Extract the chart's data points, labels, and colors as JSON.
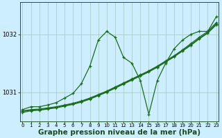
{
  "bg_color": "#cceeff",
  "grid_color": "#aacccc",
  "line_color": "#1a6b1a",
  "xlabel": "Graphe pression niveau de la mer (hPa)",
  "xlabel_fontsize": 7.5,
  "xlabel_bold": true,
  "xticks": [
    0,
    1,
    2,
    3,
    4,
    5,
    6,
    7,
    8,
    9,
    10,
    11,
    12,
    13,
    14,
    15,
    16,
    17,
    18,
    19,
    20,
    21,
    22,
    23
  ],
  "yticks": [
    1031,
    1032
  ],
  "ylim": [
    1030.5,
    1032.55
  ],
  "xlim": [
    -0.3,
    23.3
  ],
  "series_zigzag": [
    1030.7,
    1030.75,
    1030.75,
    1030.78,
    1030.82,
    1030.9,
    1030.98,
    1031.15,
    1031.45,
    1031.9,
    1032.05,
    1031.95,
    1031.6,
    1031.5,
    1031.2,
    1030.62,
    1031.2,
    1031.5,
    1031.75,
    1031.9,
    1032.0,
    1032.05,
    1032.05,
    1032.3
  ],
  "series_linear": [
    [
      1030.68,
      1030.7,
      1030.71,
      1030.73,
      1030.75,
      1030.78,
      1030.81,
      1030.85,
      1030.9,
      1030.96,
      1031.02,
      1031.09,
      1031.16,
      1031.23,
      1031.3,
      1031.37,
      1031.45,
      1031.54,
      1031.63,
      1031.73,
      1031.84,
      1031.95,
      1032.05,
      1032.2
    ],
    [
      1030.67,
      1030.69,
      1030.7,
      1030.72,
      1030.74,
      1030.77,
      1030.8,
      1030.84,
      1030.89,
      1030.95,
      1031.01,
      1031.08,
      1031.15,
      1031.22,
      1031.29,
      1031.36,
      1031.44,
      1031.53,
      1031.62,
      1031.72,
      1031.82,
      1031.93,
      1032.03,
      1032.18
    ],
    [
      1030.65,
      1030.68,
      1030.69,
      1030.71,
      1030.73,
      1030.76,
      1030.79,
      1030.83,
      1030.88,
      1030.94,
      1031.0,
      1031.07,
      1031.14,
      1031.21,
      1031.28,
      1031.35,
      1031.43,
      1031.52,
      1031.61,
      1031.71,
      1031.81,
      1031.92,
      1032.02,
      1032.16
    ]
  ]
}
